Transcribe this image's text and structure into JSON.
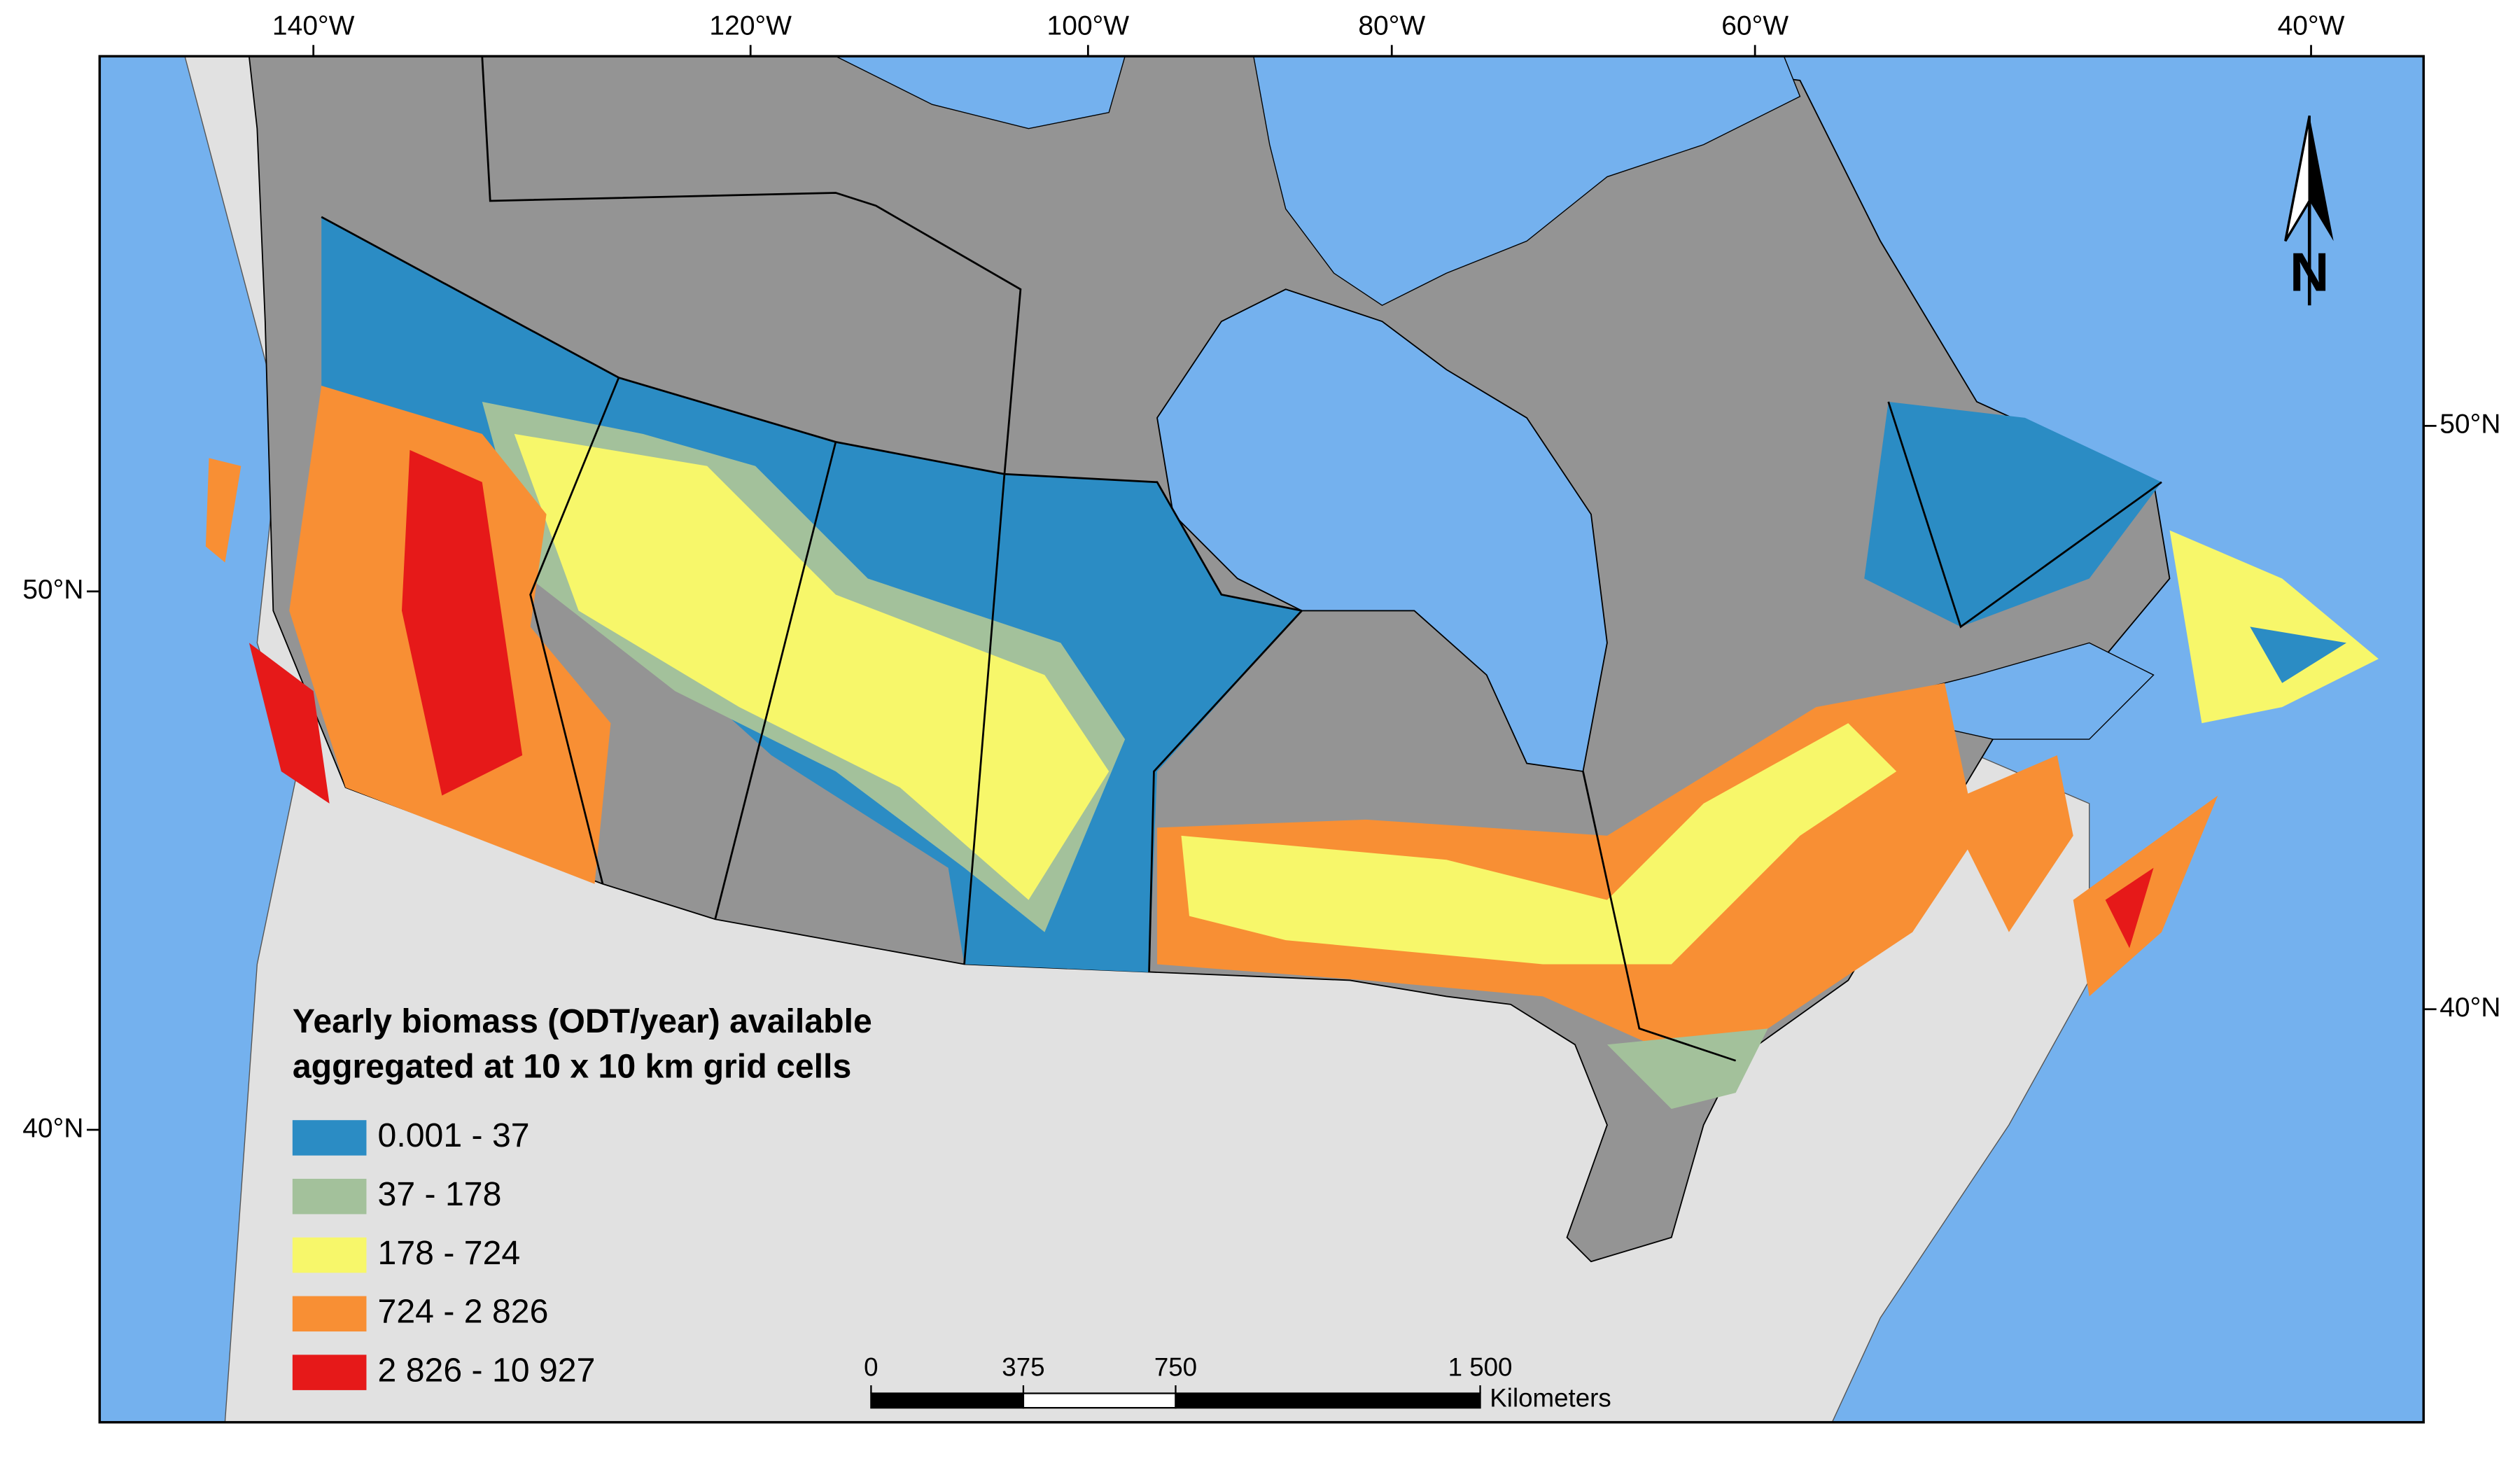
{
  "map": {
    "lon_labels": [
      "140°W",
      "120°W",
      "100°W",
      "80°W",
      "60°W",
      "40°W"
    ],
    "lat_labels_left": [
      "50°N",
      "40°N"
    ],
    "lat_labels_right": [
      "50°N",
      "40°N"
    ],
    "north_label": "N",
    "legend": {
      "title_lines": [
        "Yearly biomass (ODT/year) available",
        " aggregated at 10 x 10 km grid cells"
      ],
      "items": [
        {
          "label": "0.001 - 37",
          "color": "#2b8cc4"
        },
        {
          "label": "37 - 178",
          "color": "#a3c19b"
        },
        {
          "label": "178 - 724",
          "color": "#f7f76a"
        },
        {
          "label": "724 - 2 826",
          "color": "#f88f34"
        },
        {
          "label": "2 826 - 10 927",
          "color": "#e61919"
        }
      ]
    },
    "scale_bar": {
      "ticks": [
        0,
        375,
        750,
        {
          "value": 1500,
          "label": "1 500"
        }
      ],
      "unit": "Kilometers"
    }
  }
}
